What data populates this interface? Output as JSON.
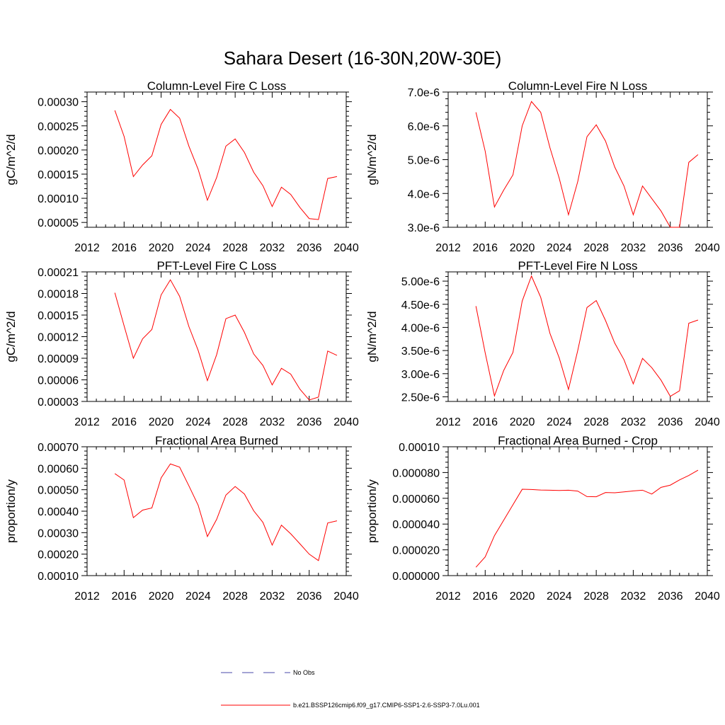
{
  "title": "Sahara Desert (16-30N,20W-30E)",
  "legend": {
    "items": [
      {
        "label": "No Obs",
        "color": "#4a4aa8",
        "dash": "dashed"
      },
      {
        "label": "b.e21.BSSP126cmip6.f09_g17.CMIP6-SSP1-2.6-SSP3-7.0Lu.001",
        "color": "#ff0000",
        "dash": "solid"
      }
    ]
  },
  "chart_data": [
    {
      "type": "line",
      "title": "Column-Level Fire C Loss",
      "ylabel": "gC/m^2/d",
      "xlim": [
        2012,
        2040
      ],
      "ylim": [
        4e-05,
        0.00032
      ],
      "xticks": [
        2012,
        2016,
        2020,
        2024,
        2028,
        2032,
        2036,
        2040
      ],
      "xtick_labels": [
        "2012",
        "2016",
        "2020",
        "2024",
        "2028",
        "2032",
        "2036",
        "2040"
      ],
      "yticks": [
        5e-05,
        0.0001,
        0.00015,
        0.0002,
        0.00025,
        0.0003
      ],
      "ytick_labels": [
        "0.00005",
        "0.00010",
        "0.00015",
        "0.00020",
        "0.00025",
        "0.00030"
      ],
      "x": [
        2015,
        2016,
        2017,
        2018,
        2019,
        2020,
        2021,
        2022,
        2023,
        2024,
        2025,
        2026,
        2027,
        2028,
        2029,
        2030,
        2031,
        2032,
        2033,
        2034,
        2035,
        2036,
        2037,
        2038,
        2039
      ],
      "series": [
        {
          "color": "#ff0000",
          "values": [
            0.000282,
            0.000228,
            0.000145,
            0.000169,
            0.000188,
            0.000253,
            0.000284,
            0.000266,
            0.000208,
            0.00016,
            9.6e-05,
            0.000143,
            0.000208,
            0.000223,
            0.000195,
            0.000154,
            0.000126,
            8.3e-05,
            0.000123,
            0.000108,
            8.1e-05,
            5.8e-05,
            5.6e-05,
            0.000141,
            0.000145
          ]
        }
      ]
    },
    {
      "type": "line",
      "title": "Column-Level Fire N Loss",
      "ylabel": "gN/m^2/d",
      "xlim": [
        2012,
        2040
      ],
      "ylim": [
        3e-06,
        7e-06
      ],
      "xticks": [
        2012,
        2016,
        2020,
        2024,
        2028,
        2032,
        2036,
        2040
      ],
      "xtick_labels": [
        "2012",
        "2016",
        "2020",
        "2024",
        "2028",
        "2032",
        "2036",
        "2040"
      ],
      "yticks": [
        3e-06,
        4e-06,
        5e-06,
        6e-06,
        7e-06
      ],
      "ytick_labels": [
        "3.0e-6",
        "4.0e-6",
        "5.0e-6",
        "6.0e-6",
        "7.0e-6"
      ],
      "x": [
        2015,
        2016,
        2017,
        2018,
        2019,
        2020,
        2021,
        2022,
        2023,
        2024,
        2025,
        2026,
        2027,
        2028,
        2029,
        2030,
        2031,
        2032,
        2033,
        2034,
        2035,
        2036,
        2037,
        2038,
        2039
      ],
      "series": [
        {
          "color": "#ff0000",
          "values": [
            6.4e-06,
            5.25e-06,
            3.6e-06,
            4.1e-06,
            4.55e-06,
            6e-06,
            6.72e-06,
            6.4e-06,
            5.35e-06,
            4.45e-06,
            3.37e-06,
            4.35e-06,
            5.68e-06,
            6.03e-06,
            5.55e-06,
            4.78e-06,
            4.22e-06,
            3.37e-06,
            4.22e-06,
            3.85e-06,
            3.48e-06,
            3e-06,
            3e-06,
            4.92e-06,
            5.15e-06
          ]
        }
      ]
    },
    {
      "type": "line",
      "title": "PFT-Level Fire C Loss",
      "ylabel": "gC/m^2/d",
      "xlim": [
        2012,
        2040
      ],
      "ylim": [
        3e-05,
        0.00021
      ],
      "xticks": [
        2012,
        2016,
        2020,
        2024,
        2028,
        2032,
        2036,
        2040
      ],
      "xtick_labels": [
        "2012",
        "2016",
        "2020",
        "2024",
        "2028",
        "2032",
        "2036",
        "2040"
      ],
      "yticks": [
        3e-05,
        6e-05,
        9e-05,
        0.00012,
        0.00015,
        0.00018,
        0.00021
      ],
      "ytick_labels": [
        "0.00003",
        "0.00006",
        "0.00009",
        "0.00012",
        "0.00015",
        "0.00018",
        "0.00021"
      ],
      "x": [
        2015,
        2016,
        2017,
        2018,
        2019,
        2020,
        2021,
        2022,
        2023,
        2024,
        2025,
        2026,
        2027,
        2028,
        2029,
        2030,
        2031,
        2032,
        2033,
        2034,
        2035,
        2036,
        2037,
        2038,
        2039
      ],
      "series": [
        {
          "color": "#ff0000",
          "values": [
            0.000181,
            0.000135,
            9e-05,
            0.000117,
            0.00013,
            0.000178,
            0.000199,
            0.000176,
            0.000134,
            0.000101,
            5.9e-05,
            9.5e-05,
            0.000145,
            0.00015,
            0.000126,
            9.6e-05,
            8e-05,
            5.3e-05,
            7.6e-05,
            6.8e-05,
            4.7e-05,
            3.2e-05,
            3.6e-05,
            0.0001,
            9.4e-05
          ]
        }
      ]
    },
    {
      "type": "line",
      "title": "PFT-Level Fire N Loss",
      "ylabel": "gN/m^2/d",
      "xlim": [
        2012,
        2040
      ],
      "ylim": [
        2.4e-06,
        5.2e-06
      ],
      "xticks": [
        2012,
        2016,
        2020,
        2024,
        2028,
        2032,
        2036,
        2040
      ],
      "xtick_labels": [
        "2012",
        "2016",
        "2020",
        "2024",
        "2028",
        "2032",
        "2036",
        "2040"
      ],
      "yticks": [
        2.5e-06,
        3e-06,
        3.5e-06,
        4e-06,
        4.5e-06,
        5e-06
      ],
      "ytick_labels": [
        "2.50e-6",
        "3.00e-6",
        "3.50e-6",
        "4.00e-6",
        "4.50e-6",
        "5.00e-6"
      ],
      "x": [
        2015,
        2016,
        2017,
        2018,
        2019,
        2020,
        2021,
        2022,
        2023,
        2024,
        2025,
        2026,
        2027,
        2028,
        2029,
        2030,
        2031,
        2032,
        2033,
        2034,
        2035,
        2036,
        2037,
        2038,
        2039
      ],
      "series": [
        {
          "color": "#ff0000",
          "values": [
            4.46e-06,
            3.45e-06,
            2.52e-06,
            3.07e-06,
            3.46e-06,
            4.57e-06,
            5.11e-06,
            4.65e-06,
            3.87e-06,
            3.34e-06,
            2.66e-06,
            3.5e-06,
            4.43e-06,
            4.58e-06,
            4.15e-06,
            3.66e-06,
            3.3e-06,
            2.78e-06,
            3.33e-06,
            3.13e-06,
            2.86e-06,
            2.51e-06,
            2.63e-06,
            4.09e-06,
            4.16e-06
          ]
        }
      ]
    },
    {
      "type": "line",
      "title": "Fractional Area Burned",
      "ylabel": "proportion/y",
      "xlim": [
        2012,
        2040
      ],
      "ylim": [
        0.0001,
        0.0007
      ],
      "xticks": [
        2012,
        2016,
        2020,
        2024,
        2028,
        2032,
        2036,
        2040
      ],
      "xtick_labels": [
        "2012",
        "2016",
        "2020",
        "2024",
        "2028",
        "2032",
        "2036",
        "2040"
      ],
      "yticks": [
        0.0001,
        0.0002,
        0.0003,
        0.0004,
        0.0005,
        0.0006,
        0.0007
      ],
      "ytick_labels": [
        "0.00010",
        "0.00020",
        "0.00030",
        "0.00040",
        "0.00050",
        "0.00060",
        "0.00070"
      ],
      "x": [
        2015,
        2016,
        2017,
        2018,
        2019,
        2020,
        2021,
        2022,
        2023,
        2024,
        2025,
        2026,
        2027,
        2028,
        2029,
        2030,
        2031,
        2032,
        2033,
        2034,
        2035,
        2036,
        2037,
        2038,
        2039
      ],
      "series": [
        {
          "color": "#ff0000",
          "values": [
            0.000575,
            0.000545,
            0.00037,
            0.000405,
            0.000415,
            0.000555,
            0.00062,
            0.000605,
            0.000518,
            0.000428,
            0.000282,
            0.000362,
            0.000475,
            0.000515,
            0.00048,
            0.000402,
            0.000348,
            0.000242,
            0.000335,
            0.000295,
            0.000248,
            0.0002,
            0.00017,
            0.000345,
            0.000355
          ]
        }
      ]
    },
    {
      "type": "line",
      "title": "Fractional Area Burned - Crop",
      "ylabel": "proportion/y",
      "xlim": [
        2012,
        2040
      ],
      "ylim": [
        0.0,
        0.0001
      ],
      "xticks": [
        2012,
        2016,
        2020,
        2024,
        2028,
        2032,
        2036,
        2040
      ],
      "xtick_labels": [
        "2012",
        "2016",
        "2020",
        "2024",
        "2028",
        "2032",
        "2036",
        "2040"
      ],
      "yticks": [
        0.0,
        2e-05,
        4e-05,
        6e-05,
        8e-05,
        0.0001
      ],
      "ytick_labels": [
        "0.000000",
        "0.000020",
        "0.000040",
        "0.000060",
        "0.000080",
        "0.00010"
      ],
      "x": [
        2015,
        2016,
        2017,
        2018,
        2019,
        2020,
        2021,
        2022,
        2023,
        2024,
        2025,
        2026,
        2027,
        2028,
        2029,
        2030,
        2031,
        2032,
        2033,
        2034,
        2035,
        2036,
        2037,
        2038,
        2039
      ],
      "series": [
        {
          "color": "#ff0000",
          "values": [
            6.5e-06,
            1.45e-05,
            3.1e-05,
            4.3e-05,
            5.5e-05,
            6.7e-05,
            6.68e-05,
            6.64e-05,
            6.63e-05,
            6.61e-05,
            6.63e-05,
            6.56e-05,
            6.13e-05,
            6.12e-05,
            6.45e-05,
            6.43e-05,
            6.5e-05,
            6.57e-05,
            6.63e-05,
            6.33e-05,
            6.85e-05,
            7.02e-05,
            7.43e-05,
            7.77e-05,
            8.18e-05
          ]
        }
      ]
    }
  ]
}
